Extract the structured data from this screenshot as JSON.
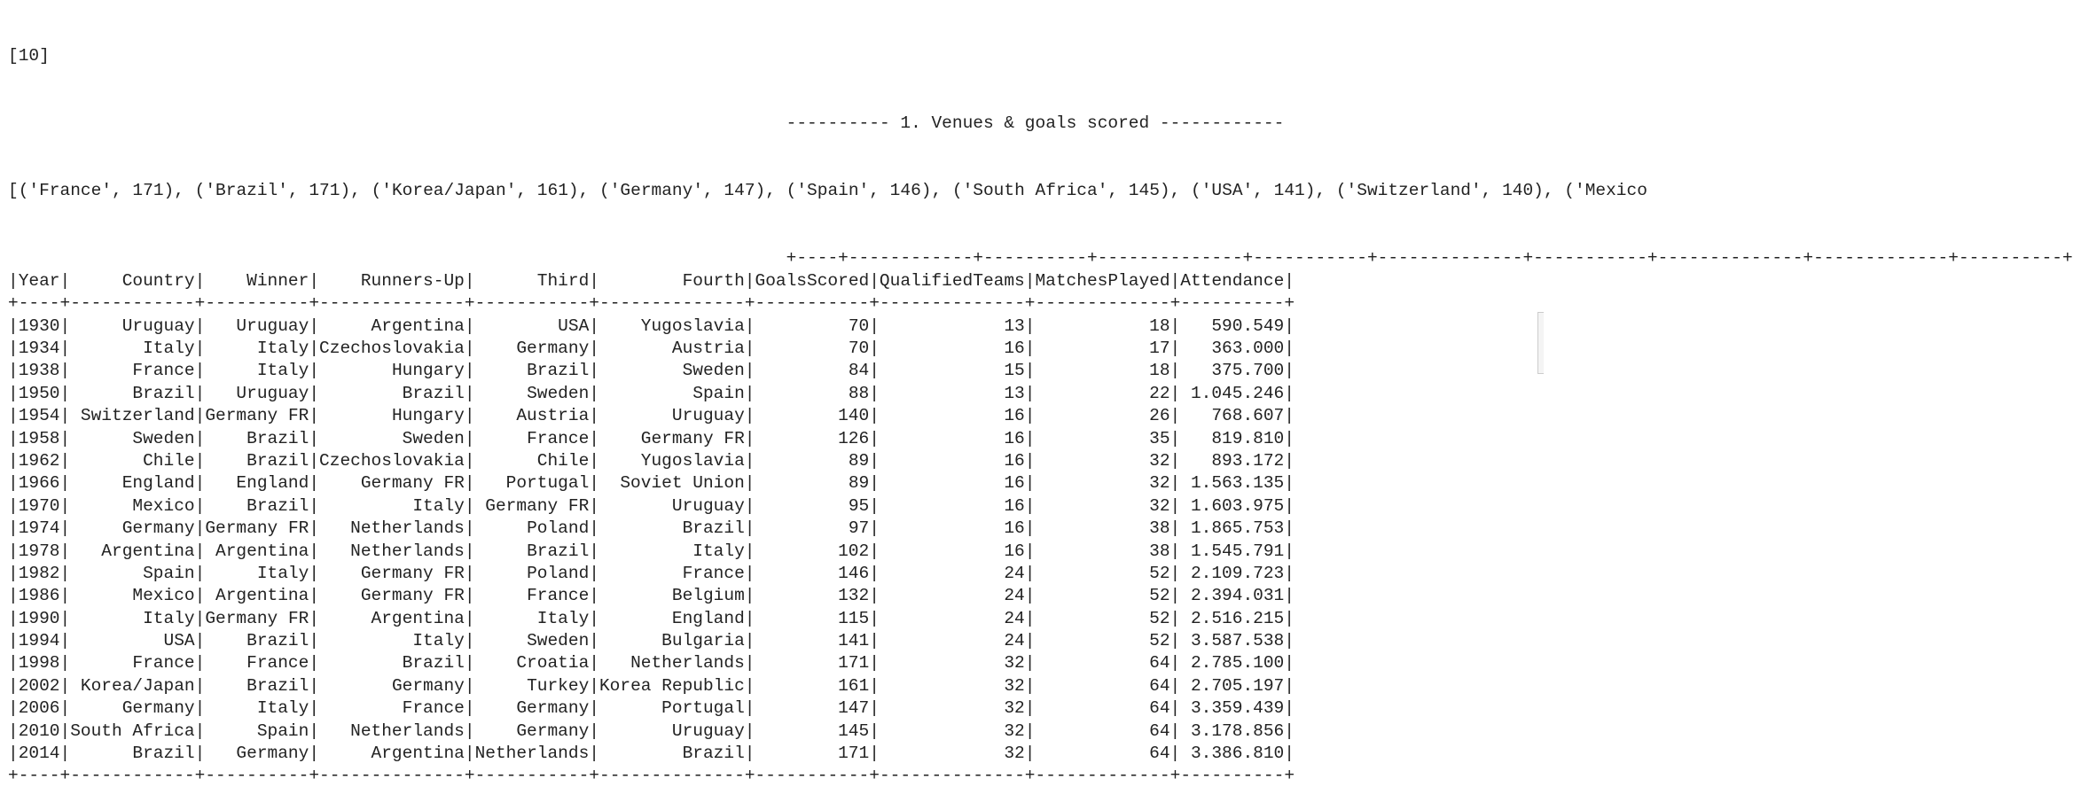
{
  "prompt": "[10]",
  "heading": "---------- 1. Venues & goals scored ------------",
  "list_output": "[('France', 171), ('Brazil', 171), ('Korea/Japan', 161), ('Germany', 147), ('Spain', 146), ('South Africa', 145), ('USA', 141), ('Switzerland', 140), ('Mexico",
  "table": {
    "columns": [
      "Year",
      "Country",
      "Winner",
      "Runners-Up",
      "Third",
      "Fourth",
      "GoalsScored",
      "QualifiedTeams",
      "MatchesPlayed",
      "Attendance"
    ],
    "rows": [
      [
        1930,
        "Uruguay",
        "Uruguay",
        "Argentina",
        "USA",
        "Yugoslavia",
        70,
        13,
        18,
        "590.549"
      ],
      [
        1934,
        "Italy",
        "Italy",
        "Czechoslovakia",
        "Germany",
        "Austria",
        70,
        16,
        17,
        "363.000"
      ],
      [
        1938,
        "France",
        "Italy",
        "Hungary",
        "Brazil",
        "Sweden",
        84,
        15,
        18,
        "375.700"
      ],
      [
        1950,
        "Brazil",
        "Uruguay",
        "Brazil",
        "Sweden",
        "Spain",
        88,
        13,
        22,
        "1.045.246"
      ],
      [
        1954,
        "Switzerland",
        "Germany FR",
        "Hungary",
        "Austria",
        "Uruguay",
        140,
        16,
        26,
        "768.607"
      ],
      [
        1958,
        "Sweden",
        "Brazil",
        "Sweden",
        "France",
        "Germany FR",
        126,
        16,
        35,
        "819.810"
      ],
      [
        1962,
        "Chile",
        "Brazil",
        "Czechoslovakia",
        "Chile",
        "Yugoslavia",
        89,
        16,
        32,
        "893.172"
      ],
      [
        1966,
        "England",
        "England",
        "Germany FR",
        "Portugal",
        "Soviet Union",
        89,
        16,
        32,
        "1.563.135"
      ],
      [
        1970,
        "Mexico",
        "Brazil",
        "Italy",
        "Germany FR",
        "Uruguay",
        95,
        16,
        32,
        "1.603.975"
      ],
      [
        1974,
        "Germany",
        "Germany FR",
        "Netherlands",
        "Poland",
        "Brazil",
        97,
        16,
        38,
        "1.865.753"
      ],
      [
        1978,
        "Argentina",
        "Argentina",
        "Netherlands",
        "Brazil",
        "Italy",
        102,
        16,
        38,
        "1.545.791"
      ],
      [
        1982,
        "Spain",
        "Italy",
        "Germany FR",
        "Poland",
        "France",
        146,
        24,
        52,
        "2.109.723"
      ],
      [
        1986,
        "Mexico",
        "Argentina",
        "Germany FR",
        "France",
        "Belgium",
        132,
        24,
        52,
        "2.394.031"
      ],
      [
        1990,
        "Italy",
        "Germany FR",
        "Argentina",
        "Italy",
        "England",
        115,
        24,
        52,
        "2.516.215"
      ],
      [
        1994,
        "USA",
        "Brazil",
        "Italy",
        "Sweden",
        "Bulgaria",
        141,
        24,
        52,
        "3.587.538"
      ],
      [
        1998,
        "France",
        "France",
        "Brazil",
        "Croatia",
        "Netherlands",
        171,
        32,
        64,
        "2.785.100"
      ],
      [
        2002,
        "Korea/Japan",
        "Brazil",
        "Germany",
        "Turkey",
        "Korea Republic",
        161,
        32,
        64,
        "2.705.197"
      ],
      [
        2006,
        "Germany",
        "Italy",
        "France",
        "Germany",
        "Portugal",
        147,
        32,
        64,
        "3.359.439"
      ],
      [
        2010,
        "South Africa",
        "Spain",
        "Netherlands",
        "Germany",
        "Uruguay",
        145,
        32,
        64,
        "3.178.856"
      ],
      [
        2014,
        "Brazil",
        "Germany",
        "Argentina",
        "Netherlands",
        "Brazil",
        171,
        32,
        64,
        "3.386.810"
      ]
    ]
  }
}
